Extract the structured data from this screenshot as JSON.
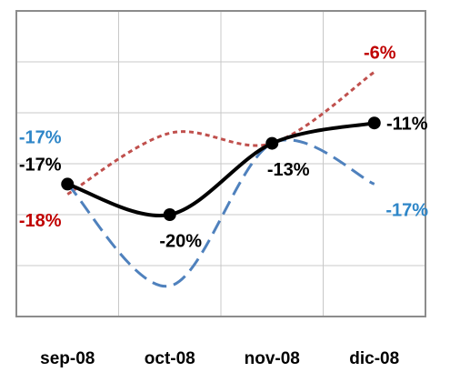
{
  "chart_data": {
    "type": "line",
    "categories": [
      "sep-08",
      "oct-08",
      "nov-08",
      "dic-08"
    ],
    "series": [
      {
        "color": "#c0504d",
        "dash": "5,4",
        "values": [
          -18,
          -12,
          -13,
          -6
        ],
        "value_labels": [
          "-18%",
          null,
          null,
          "-6%"
        ]
      },
      {
        "color": "#4f81bd",
        "dash": "16,8",
        "values": [
          -17,
          -27,
          -13,
          -17
        ],
        "value_labels": [
          "-17%",
          null,
          null,
          "-17%"
        ]
      },
      {
        "color": "#000000",
        "dash": null,
        "markers": true,
        "values": [
          -17,
          -20,
          -13,
          -11
        ],
        "value_labels": [
          "-17%",
          "-20%",
          "-13%",
          "-11%"
        ]
      }
    ],
    "ylim": [
      -30,
      0
    ],
    "yticks": [
      -30,
      -25,
      -20,
      -15,
      -10,
      -5,
      0
    ],
    "grid": true
  }
}
